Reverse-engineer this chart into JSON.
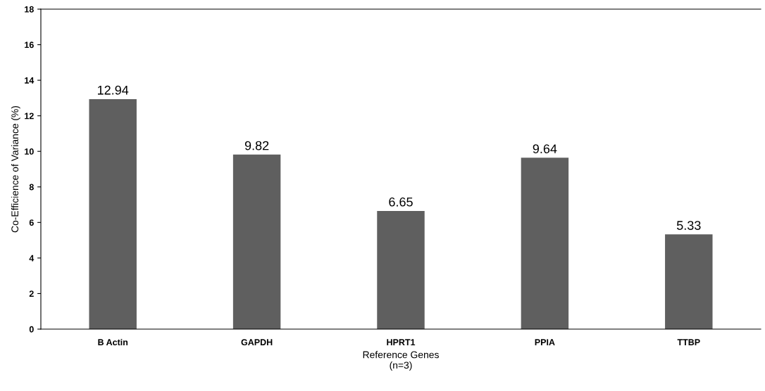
{
  "chart_data": {
    "type": "bar",
    "xlabel": "Reference Genes\n(n=3)",
    "ylabel": "Co-Efficience of Variance (%)",
    "categories": [
      "B Actin",
      "GAPDH",
      "HPRT1",
      "PPIA",
      "TTBP"
    ],
    "values": [
      12.94,
      9.82,
      6.65,
      9.64,
      5.33
    ],
    "color": "#5f5f5f",
    "ylim": [
      0,
      18
    ],
    "yticks": [
      0,
      2,
      4,
      6,
      8,
      10,
      12,
      14,
      16,
      18
    ],
    "data_labels": true,
    "grid": false,
    "legend": false
  }
}
